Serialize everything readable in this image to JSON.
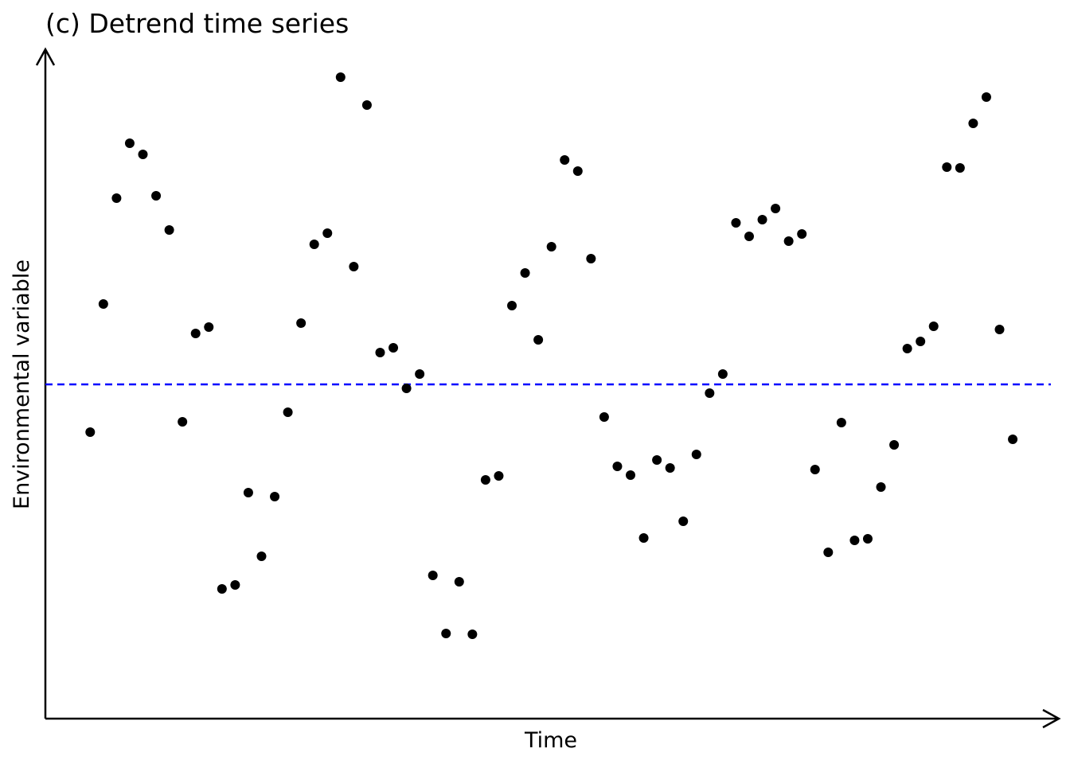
{
  "chart_data": {
    "type": "scatter",
    "title": "(c) Detrend time series",
    "x_label": "Time",
    "y_label": "Environmental variable",
    "x": [
      1,
      2,
      3,
      4,
      5,
      6,
      7,
      8,
      9,
      10,
      11,
      12,
      13,
      14,
      15,
      16,
      17,
      18,
      19,
      20,
      21,
      22,
      23,
      24,
      25,
      26,
      27,
      28,
      29,
      30,
      31,
      32,
      33,
      34,
      35,
      36,
      37,
      38,
      39,
      40,
      41,
      42,
      43,
      44,
      45,
      46,
      47,
      48,
      49,
      50,
      51,
      52,
      53,
      54,
      55,
      56,
      57,
      58,
      59,
      60,
      61,
      62,
      63,
      64,
      65,
      66,
      67,
      68,
      69,
      70,
      71
    ],
    "values": [
      -0.6,
      1.01,
      2.34,
      3.03,
      2.89,
      2.37,
      1.94,
      -0.47,
      0.64,
      0.72,
      -2.57,
      -2.52,
      -1.36,
      -2.16,
      -1.41,
      -0.35,
      0.77,
      1.76,
      1.9,
      3.86,
      1.48,
      3.51,
      0.4,
      0.46,
      -0.05,
      0.13,
      -2.4,
      -3.13,
      -2.48,
      -3.14,
      -1.2,
      -1.15,
      0.99,
      1.4,
      0.56,
      1.73,
      2.82,
      2.68,
      1.58,
      -0.41,
      -1.03,
      -1.14,
      -1.93,
      -0.95,
      -1.05,
      -1.72,
      -0.88,
      -0.11,
      0.13,
      2.03,
      1.86,
      2.07,
      2.21,
      1.8,
      1.89,
      -1.07,
      -2.11,
      -0.48,
      -1.96,
      -1.94,
      -1.29,
      -0.76,
      0.45,
      0.54,
      0.73,
      2.73,
      2.72,
      3.28,
      3.61,
      0.69,
      -0.69
    ],
    "color": "#000000",
    "reference_line": {
      "value": 0,
      "color": "#0000ff",
      "style": "dashed"
    },
    "xlim": [
      -2.4,
      74.5
    ],
    "ylim": [
      -4.2,
      4.21
    ]
  }
}
